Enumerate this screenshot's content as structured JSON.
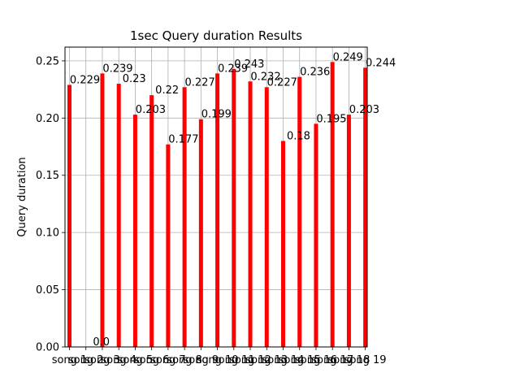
{
  "chart_data": {
    "type": "bar",
    "title": "1sec Query duration Results",
    "xlabel": "",
    "ylabel": "Query duration",
    "ylim": [
      0,
      0.262
    ],
    "yticks": [
      "0.00",
      "0.05",
      "0.10",
      "0.15",
      "0.20",
      "0.25"
    ],
    "grid": true,
    "legend": "none",
    "bar_color": "#ff0000",
    "categories": [
      "song 1",
      "song 2",
      "song 3",
      "song 4",
      "song 5",
      "song 6",
      "song 7",
      "song 8",
      "song 9",
      "song 10",
      "song 11",
      "song 12",
      "song 13",
      "song 14",
      "song 15",
      "song 16",
      "song 17",
      "song 18",
      "song 19"
    ],
    "values": [
      0.229,
      0.0,
      0.239,
      0.23,
      0.203,
      0.22,
      0.177,
      0.227,
      0.199,
      0.239,
      0.243,
      0.232,
      0.227,
      0.18,
      0.236,
      0.195,
      0.249,
      0.203,
      0.244
    ],
    "value_labels": [
      "0.229",
      "0.0",
      "0.239",
      "0.23",
      "0.203",
      "0.22",
      "0.177",
      "0.227",
      "0.199",
      "0.239",
      "0.243",
      "0.232",
      "0.227",
      "0.18",
      "0.236",
      "0.195",
      "0.249",
      "0.203",
      "0.244"
    ]
  }
}
